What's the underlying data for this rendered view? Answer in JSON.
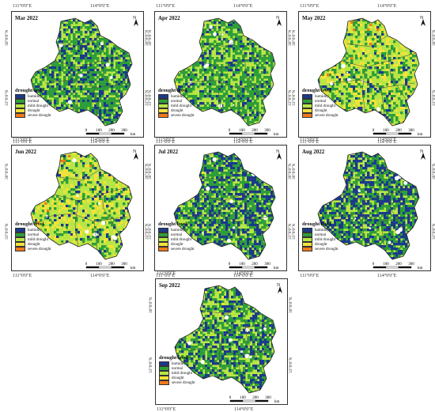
{
  "legend": {
    "title": "drought level",
    "items": [
      {
        "label": "humidity",
        "color": "#1b3a8c"
      },
      {
        "label": "normal",
        "color": "#2e9e3a"
      },
      {
        "label": "mild drought",
        "color": "#b9e645"
      },
      {
        "label": "drought",
        "color": "#f4e23a"
      },
      {
        "label": "severe drought",
        "color": "#f07a1a"
      }
    ]
  },
  "coords": {
    "lon_left": "111°0'0\"E",
    "lon_right": "114°0'0\"E",
    "lat_top": "36°0'0\"N",
    "lat_bottom": "33°0'0\"N"
  },
  "scale": {
    "ticks": [
      "0",
      "100",
      "200",
      "300"
    ],
    "unit": "km"
  },
  "north_label": "N",
  "panels": [
    {
      "title": "Mar 2022",
      "mix": [
        0.22,
        0.38,
        0.36,
        0.03,
        0.01
      ]
    },
    {
      "title": "Apr 2022",
      "mix": [
        0.12,
        0.38,
        0.42,
        0.06,
        0.02
      ]
    },
    {
      "title": "May 2022",
      "mix": [
        0.05,
        0.22,
        0.46,
        0.17,
        0.1
      ]
    },
    {
      "title": "Jun 2022",
      "mix": [
        0.07,
        0.14,
        0.5,
        0.19,
        0.1
      ]
    },
    {
      "title": "Jul 2022",
      "mix": [
        0.28,
        0.36,
        0.3,
        0.04,
        0.02
      ]
    },
    {
      "title": "Aug 2022",
      "mix": [
        0.33,
        0.3,
        0.28,
        0.06,
        0.03
      ]
    },
    {
      "title": "Sep 2022",
      "mix": [
        0.22,
        0.33,
        0.35,
        0.07,
        0.03
      ]
    }
  ]
}
